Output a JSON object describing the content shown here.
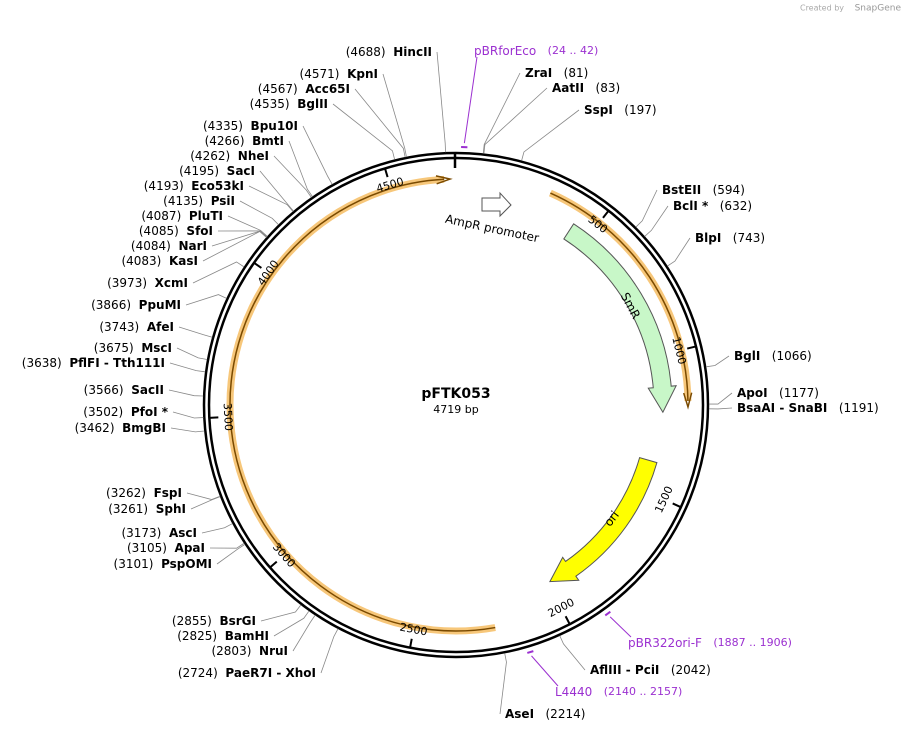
{
  "header": {
    "credit": "Created by",
    "brand": "SnapGene"
  },
  "plasmid": {
    "name": "pFTK053",
    "size": "4719 bp"
  },
  "ruler": [
    500,
    1000,
    1500,
    2000,
    2500,
    3000,
    3500,
    4000,
    4500
  ],
  "features": {
    "promoter": "AmpR promoter",
    "smr": "SmR",
    "ori": "ori"
  },
  "enzymes": [
    {
      "name": "HincII",
      "position": "(4688)"
    },
    {
      "name": "KpnI",
      "position": "(4571)"
    },
    {
      "name": "Acc65I",
      "position": "(4567)"
    },
    {
      "name": "BglII",
      "position": "(4535)"
    },
    {
      "name": "Bpu10I",
      "position": "(4335)"
    },
    {
      "name": "BmtI",
      "position": "(4266)"
    },
    {
      "name": "NheI",
      "position": "(4262)"
    },
    {
      "name": "SacI",
      "position": "(4195)"
    },
    {
      "name": "Eco53kI",
      "position": "(4193)"
    },
    {
      "name": "PsiI",
      "position": "(4135)"
    },
    {
      "name": "PluTI",
      "position": "(4087)"
    },
    {
      "name": "SfoI",
      "position": "(4085)"
    },
    {
      "name": "NarI",
      "position": "(4084)"
    },
    {
      "name": "KasI",
      "position": "(4083)"
    },
    {
      "name": "XcmI",
      "position": "(3973)"
    },
    {
      "name": "PpuMI",
      "position": "(3866)"
    },
    {
      "name": "AfeI",
      "position": "(3743)"
    },
    {
      "name": "MscI",
      "position": "(3675)"
    },
    {
      "name": "PflFI - Tth111I",
      "position": "(3638)"
    },
    {
      "name": "SacII",
      "position": "(3566)"
    },
    {
      "name": "PfoI *",
      "position": "(3502)"
    },
    {
      "name": "BmgBI",
      "position": "(3462)"
    },
    {
      "name": "FspI",
      "position": "(3262)"
    },
    {
      "name": "SphI",
      "position": "(3261)"
    },
    {
      "name": "AscI",
      "position": "(3173)"
    },
    {
      "name": "ApaI",
      "position": "(3105)"
    },
    {
      "name": "PspOMI",
      "position": "(3101)"
    },
    {
      "name": "BsrGI",
      "position": "(2855)"
    },
    {
      "name": "BamHI",
      "position": "(2825)"
    },
    {
      "name": "NruI",
      "position": "(2803)"
    },
    {
      "name": "PaeR7I - XhoI",
      "position": "(2724)"
    },
    {
      "name": "ZraI",
      "position": "(81)"
    },
    {
      "name": "AatII",
      "position": "(83)"
    },
    {
      "name": "SspI",
      "position": "(197)"
    },
    {
      "name": "BstEII",
      "position": "(594)"
    },
    {
      "name": "BclI *",
      "position": "(632)"
    },
    {
      "name": "BlpI",
      "position": "(743)"
    },
    {
      "name": "BglI",
      "position": "(1066)"
    },
    {
      "name": "ApoI",
      "position": "(1177)"
    },
    {
      "name": "BsaAI - SnaBI",
      "position": "(1191)"
    },
    {
      "name": "AflIII - PciI",
      "position": "(2042)"
    },
    {
      "name": "AseI",
      "position": "(2214)"
    }
  ],
  "primers": [
    {
      "name": "pBRforEco",
      "range": "(24 .. 42)"
    },
    {
      "name": "pBR322ori-F",
      "range": "(1887 .. 1906)"
    },
    {
      "name": "L4440",
      "range": "(2140 .. 2157)"
    }
  ]
}
